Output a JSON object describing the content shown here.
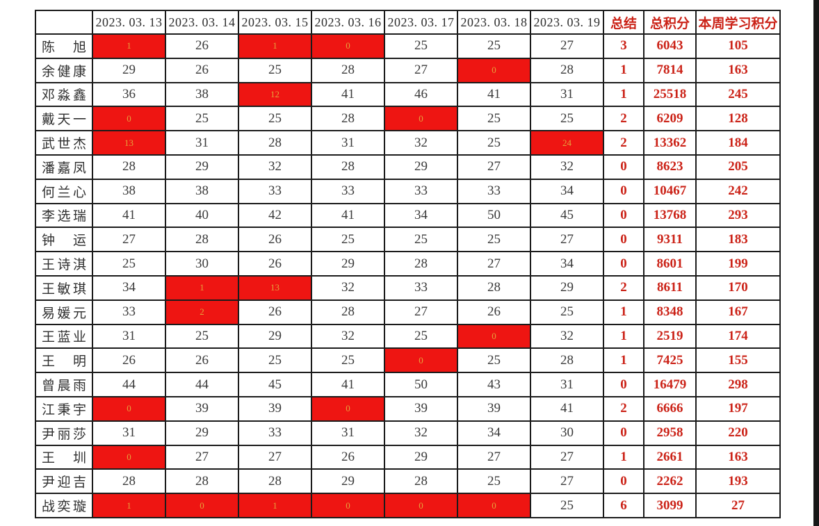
{
  "colors": {
    "red_fill": "#ee1512",
    "red_cell_text": "#e6a33c",
    "accent_text": "#cb2217",
    "body_text": "#3a3a3a",
    "border": "#1b1b1b"
  },
  "table": {
    "corner_label": "",
    "date_headers": [
      "2023. 03. 13",
      "2023. 03. 14",
      "2023. 03. 15",
      "2023. 03. 16",
      "2023. 03. 17",
      "2023. 03. 18",
      "2023. 03. 19"
    ],
    "summary_headers": [
      "总结",
      "总积分",
      "本周学习积分"
    ],
    "rows": [
      {
        "name": "陈旭",
        "scores": [
          "1",
          "26",
          "1",
          "0",
          "25",
          "25",
          "27"
        ],
        "red": [
          0,
          2,
          3
        ],
        "summary": "3",
        "total_points": "6043",
        "week_points": "105"
      },
      {
        "name": "余健康",
        "scores": [
          "29",
          "26",
          "25",
          "28",
          "27",
          "0",
          "28"
        ],
        "red": [
          5
        ],
        "summary": "1",
        "total_points": "7814",
        "week_points": "163"
      },
      {
        "name": "邓淼鑫",
        "scores": [
          "36",
          "38",
          "12",
          "41",
          "46",
          "41",
          "31"
        ],
        "red": [
          2
        ],
        "summary": "1",
        "total_points": "25518",
        "week_points": "245"
      },
      {
        "name": "戴天一",
        "scores": [
          "0",
          "25",
          "25",
          "28",
          "0",
          "25",
          "25"
        ],
        "red": [
          0,
          4
        ],
        "summary": "2",
        "total_points": "6209",
        "week_points": "128"
      },
      {
        "name": "武世杰",
        "scores": [
          "13",
          "31",
          "28",
          "31",
          "32",
          "25",
          "24"
        ],
        "red": [
          0,
          6
        ],
        "summary": "2",
        "total_points": "13362",
        "week_points": "184"
      },
      {
        "name": "潘嘉凤",
        "scores": [
          "28",
          "29",
          "32",
          "28",
          "29",
          "27",
          "32"
        ],
        "red": [],
        "summary": "0",
        "total_points": "8623",
        "week_points": "205"
      },
      {
        "name": "何兰心",
        "scores": [
          "38",
          "38",
          "33",
          "33",
          "33",
          "33",
          "34"
        ],
        "red": [],
        "summary": "0",
        "total_points": "10467",
        "week_points": "242"
      },
      {
        "name": "李选瑞",
        "scores": [
          "41",
          "40",
          "42",
          "41",
          "34",
          "50",
          "45"
        ],
        "red": [],
        "summary": "0",
        "total_points": "13768",
        "week_points": "293"
      },
      {
        "name": "钟运",
        "scores": [
          "27",
          "28",
          "26",
          "25",
          "25",
          "25",
          "27"
        ],
        "red": [],
        "summary": "0",
        "total_points": "9311",
        "week_points": "183"
      },
      {
        "name": "王诗淇",
        "scores": [
          "25",
          "30",
          "26",
          "29",
          "28",
          "27",
          "34"
        ],
        "red": [],
        "summary": "0",
        "total_points": "8601",
        "week_points": "199"
      },
      {
        "name": "王敏琪",
        "scores": [
          "34",
          "1",
          "13",
          "32",
          "33",
          "28",
          "29"
        ],
        "red": [
          1,
          2
        ],
        "summary": "2",
        "total_points": "8611",
        "week_points": "170"
      },
      {
        "name": "易媛元",
        "scores": [
          "33",
          "2",
          "26",
          "28",
          "27",
          "26",
          "25"
        ],
        "red": [
          1
        ],
        "summary": "1",
        "total_points": "8348",
        "week_points": "167"
      },
      {
        "name": "王蓝业",
        "scores": [
          "31",
          "25",
          "29",
          "32",
          "25",
          "0",
          "32"
        ],
        "red": [
          5
        ],
        "summary": "1",
        "total_points": "2519",
        "week_points": "174"
      },
      {
        "name": "王明",
        "scores": [
          "26",
          "26",
          "25",
          "25",
          "0",
          "25",
          "28"
        ],
        "red": [
          4
        ],
        "summary": "1",
        "total_points": "7425",
        "week_points": "155"
      },
      {
        "name": "曾晨雨",
        "scores": [
          "44",
          "44",
          "45",
          "41",
          "50",
          "43",
          "31"
        ],
        "red": [],
        "summary": "0",
        "total_points": "16479",
        "week_points": "298"
      },
      {
        "name": "江秉宇",
        "scores": [
          "0",
          "39",
          "39",
          "0",
          "39",
          "39",
          "41"
        ],
        "red": [
          0,
          3
        ],
        "summary": "2",
        "total_points": "6666",
        "week_points": "197"
      },
      {
        "name": "尹丽莎",
        "scores": [
          "31",
          "29",
          "33",
          "31",
          "32",
          "34",
          "30"
        ],
        "red": [],
        "summary": "0",
        "total_points": "2958",
        "week_points": "220"
      },
      {
        "name": "王圳",
        "scores": [
          "0",
          "27",
          "27",
          "26",
          "29",
          "27",
          "27"
        ],
        "red": [
          0
        ],
        "summary": "1",
        "total_points": "2661",
        "week_points": "163"
      },
      {
        "name": "尹迎吉",
        "scores": [
          "28",
          "28",
          "28",
          "29",
          "28",
          "25",
          "27"
        ],
        "red": [],
        "summary": "0",
        "total_points": "2262",
        "week_points": "193"
      },
      {
        "name": "战奕璇",
        "scores": [
          "1",
          "0",
          "1",
          "0",
          "0",
          "0",
          "25"
        ],
        "red": [
          0,
          1,
          2,
          3,
          4,
          5
        ],
        "summary": "6",
        "total_points": "3099",
        "week_points": "27"
      }
    ]
  }
}
